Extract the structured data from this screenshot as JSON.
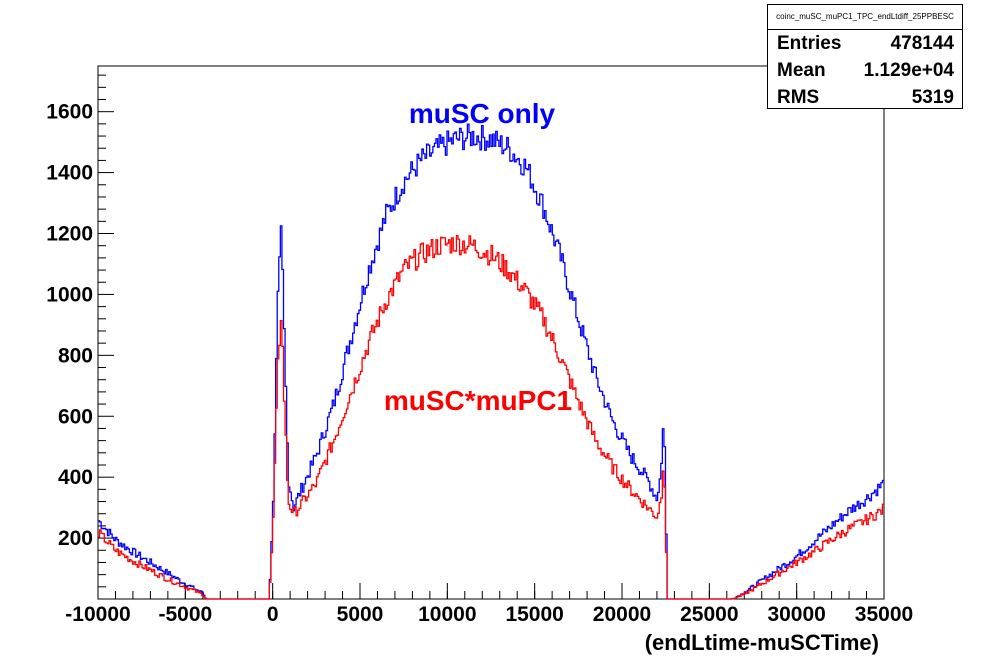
{
  "stats": {
    "title": "coinc_muSC_muPC1_TPC_endLtdiff_25PPBESC",
    "rows": [
      {
        "label": "Entries",
        "value": "478144"
      },
      {
        "label": "Mean",
        "value": "1.129e+04"
      },
      {
        "label": "RMS",
        "value": "5319"
      }
    ]
  },
  "chart_data": {
    "type": "line",
    "xlabel": "(endLtime-muSCTime)",
    "ylabel": "",
    "xlim": [
      -10000,
      35000
    ],
    "ylim": [
      0,
      1750
    ],
    "x_ticks": [
      -10000,
      -5000,
      0,
      5000,
      10000,
      15000,
      20000,
      25000,
      30000,
      35000
    ],
    "y_ticks": [
      200,
      400,
      600,
      800,
      1000,
      1200,
      1400,
      1600
    ],
    "grid": false,
    "series": [
      {
        "name": "muSC only",
        "color": "#0000ff",
        "x": [
          -10000,
          -9000,
          -8000,
          -7000,
          -6000,
          -5000,
          -4000,
          -3800,
          -3000,
          -2000,
          -200,
          0,
          300,
          500,
          700,
          900,
          1200,
          1500,
          2500,
          3500,
          4500,
          5500,
          6500,
          7500,
          8500,
          9500,
          10500,
          11500,
          12500,
          13500,
          14500,
          15500,
          16500,
          17500,
          18500,
          19500,
          20500,
          21500,
          22000,
          22250,
          22400,
          22600,
          23000,
          25000,
          26300,
          27000,
          28000,
          29000,
          30000,
          31000,
          32000,
          33000,
          34000,
          35000
        ],
        "y": [
          260,
          195,
          155,
          120,
          85,
          50,
          20,
          0,
          0,
          0,
          0,
          250,
          980,
          1210,
          800,
          400,
          300,
          340,
          470,
          640,
          860,
          1080,
          1260,
          1370,
          1440,
          1480,
          1510,
          1520,
          1510,
          1480,
          1420,
          1290,
          1120,
          920,
          730,
          580,
          470,
          390,
          330,
          420,
          640,
          0,
          0,
          0,
          0,
          20,
          60,
          100,
          140,
          190,
          240,
          290,
          330,
          380
        ]
      },
      {
        "name": "muSC*muPC1",
        "color": "#ff0000",
        "x": [
          -10000,
          -9000,
          -8000,
          -7000,
          -6000,
          -5000,
          -4000,
          -3800,
          -3000,
          -2000,
          -200,
          0,
          300,
          500,
          700,
          900,
          1200,
          1500,
          2500,
          3500,
          4500,
          5500,
          6500,
          7500,
          8500,
          9500,
          10500,
          11500,
          12500,
          13500,
          14500,
          15500,
          16500,
          17500,
          18500,
          19500,
          20500,
          21500,
          22000,
          22250,
          22400,
          22600,
          23000,
          25000,
          26300,
          27000,
          28000,
          29000,
          30000,
          31000,
          32000,
          33000,
          34000,
          35000
        ],
        "y": [
          220,
          160,
          125,
          95,
          65,
          40,
          15,
          0,
          0,
          0,
          0,
          200,
          760,
          950,
          600,
          320,
          280,
          300,
          380,
          520,
          680,
          840,
          980,
          1080,
          1130,
          1160,
          1170,
          1160,
          1130,
          1080,
          1010,
          920,
          790,
          650,
          520,
          430,
          360,
          300,
          270,
          330,
          490,
          0,
          0,
          0,
          0,
          15,
          50,
          85,
          120,
          155,
          195,
          230,
          260,
          295
        ]
      }
    ]
  },
  "annotations": {
    "blue_label": "muSC only",
    "red_label": "muSC*muPC1"
  }
}
